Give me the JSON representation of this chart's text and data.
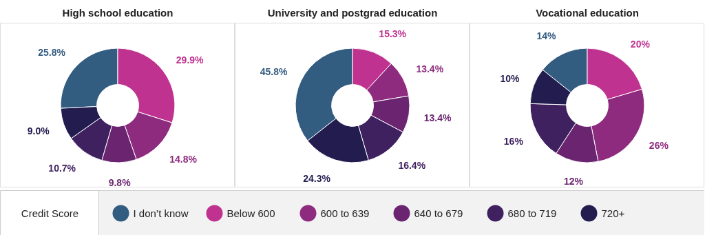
{
  "chart_data": [
    {
      "type": "donut",
      "title": "High school education",
      "categories": [
        "I don’t know",
        "Below 600",
        "600 to 639",
        "640 to 679",
        "680 to 719",
        "720+"
      ],
      "values": [
        25.8,
        29.9,
        14.8,
        9.8,
        10.7,
        9.0
      ],
      "value_labels": [
        "25.8%",
        "29.9%",
        "14.8%",
        "9.8%",
        "10.7%",
        "9.0%"
      ],
      "colors": [
        "#335c81",
        "#c0328f",
        "#8e2b7e",
        "#6b2570",
        "#3f2160",
        "#221c4f"
      ],
      "legend": "bottom",
      "legend_title": "Credit Score"
    },
    {
      "type": "donut",
      "title": "University and postgrad education",
      "values": [
        45.8,
        15.3,
        13.4,
        13.4,
        16.4,
        24.3
      ],
      "value_labels": [
        "45.8%",
        "15.3%",
        "13.4%",
        "13.4%",
        "16.4%",
        "24.3%"
      ],
      "colors": [
        "#335c81",
        "#c0328f",
        "#8e2b7e",
        "#6b2570",
        "#3f2160",
        "#221c4f"
      ]
    },
    {
      "type": "donut",
      "title": "Vocational education",
      "values": [
        14,
        20,
        26,
        12,
        16,
        10
      ],
      "value_labels": [
        "14%",
        "20%",
        "26%",
        "12%",
        "16%",
        "10%"
      ],
      "colors": [
        "#335c81",
        "#c0328f",
        "#8e2b7e",
        "#6b2570",
        "#3f2160",
        "#221c4f"
      ]
    }
  ]
}
